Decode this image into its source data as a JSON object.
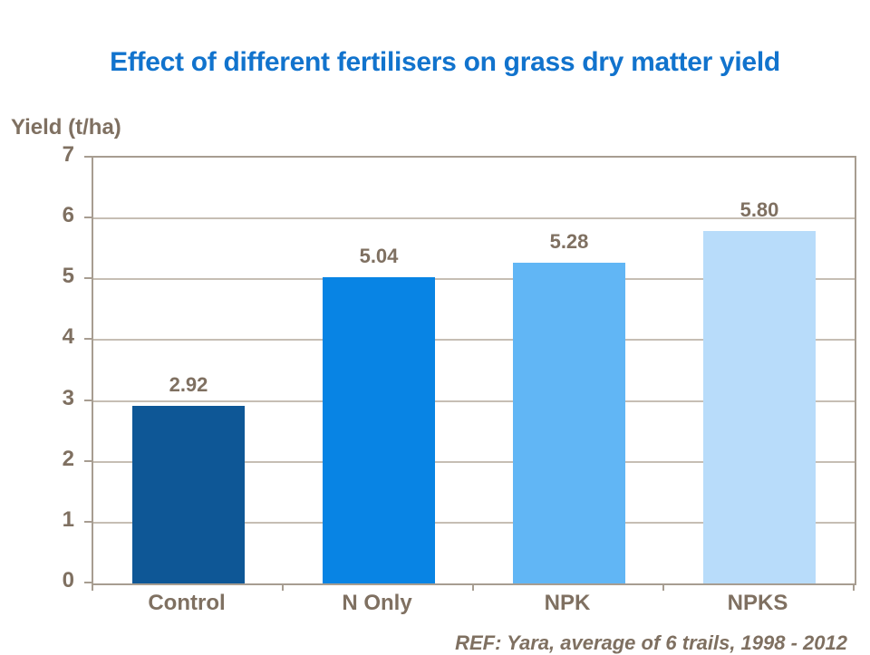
{
  "title": {
    "text": "Effect of different fertilisers on grass dry matter yield",
    "color": "#1173cd"
  },
  "y_axis_title": {
    "text": "Yield (t/ha)"
  },
  "footer": {
    "ref_text": "REF: Yara, average of 6 trails, 1998 - 2012"
  },
  "style": {
    "label_text_color": "#7f7061",
    "axis_color": "#a79d91",
    "grid_color": "#c6beb4",
    "background": "#ffffff"
  },
  "chart_data": {
    "type": "bar",
    "title": "Effect of different fertilisers on grass dry matter yield",
    "xlabel": "",
    "ylabel": "Yield (t/ha)",
    "categories": [
      "Control",
      "N Only",
      "NPK",
      "NPKS"
    ],
    "values": [
      2.92,
      5.04,
      5.28,
      5.8
    ],
    "value_labels": [
      "2.92",
      "5.04",
      "5.28",
      "5.80"
    ],
    "bar_colors": [
      "#0e5796",
      "#0884e4",
      "#61b6f5",
      "#b8dcfa"
    ],
    "ylim": [
      0,
      7
    ],
    "yticks": [
      0,
      1,
      2,
      3,
      4,
      5,
      6,
      7
    ],
    "grid": "horizontal-only",
    "legend_position": "none",
    "annotation": "REF: Yara, average of 6 trails, 1998 - 2012"
  }
}
